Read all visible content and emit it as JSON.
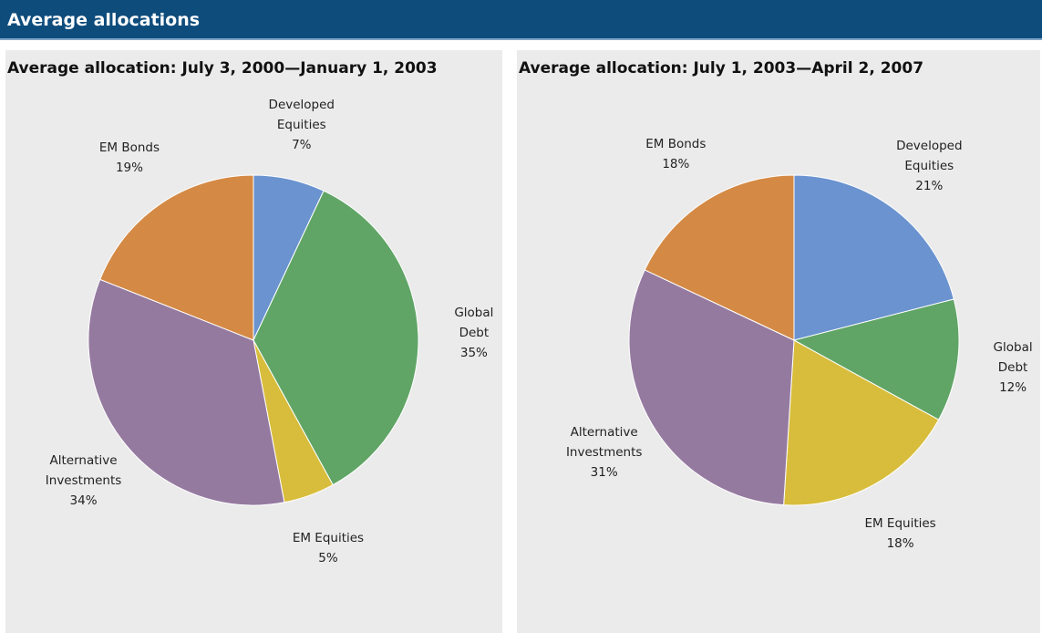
{
  "header": {
    "title": "Average allocations"
  },
  "chart_data": [
    {
      "type": "pie",
      "title": "Average allocation: July 3, 2000—January 1, 2003",
      "categories": [
        "Developed Equities",
        "Global Debt",
        "EM Equities",
        "Alternative Investments",
        "EM Bonds"
      ],
      "values": [
        7,
        35,
        5,
        34,
        19
      ],
      "value_labels": [
        "7%",
        "35%",
        "5%",
        "34%",
        "19%"
      ],
      "colors": [
        "#6a93cf",
        "#60a566",
        "#d8bd3c",
        "#957aa0",
        "#d48a45"
      ]
    },
    {
      "type": "pie",
      "title": "Average allocation: July 1, 2003—April 2, 2007",
      "categories": [
        "Developed Equities",
        "Global Debt",
        "EM Equities",
        "Alternative Investments",
        "EM Bonds"
      ],
      "values": [
        21,
        12,
        18,
        31,
        18
      ],
      "value_labels": [
        "21%",
        "12%",
        "18%",
        "31%",
        "18%"
      ],
      "colors": [
        "#6a93cf",
        "#60a566",
        "#d8bd3c",
        "#957aa0",
        "#d48a45"
      ]
    }
  ]
}
